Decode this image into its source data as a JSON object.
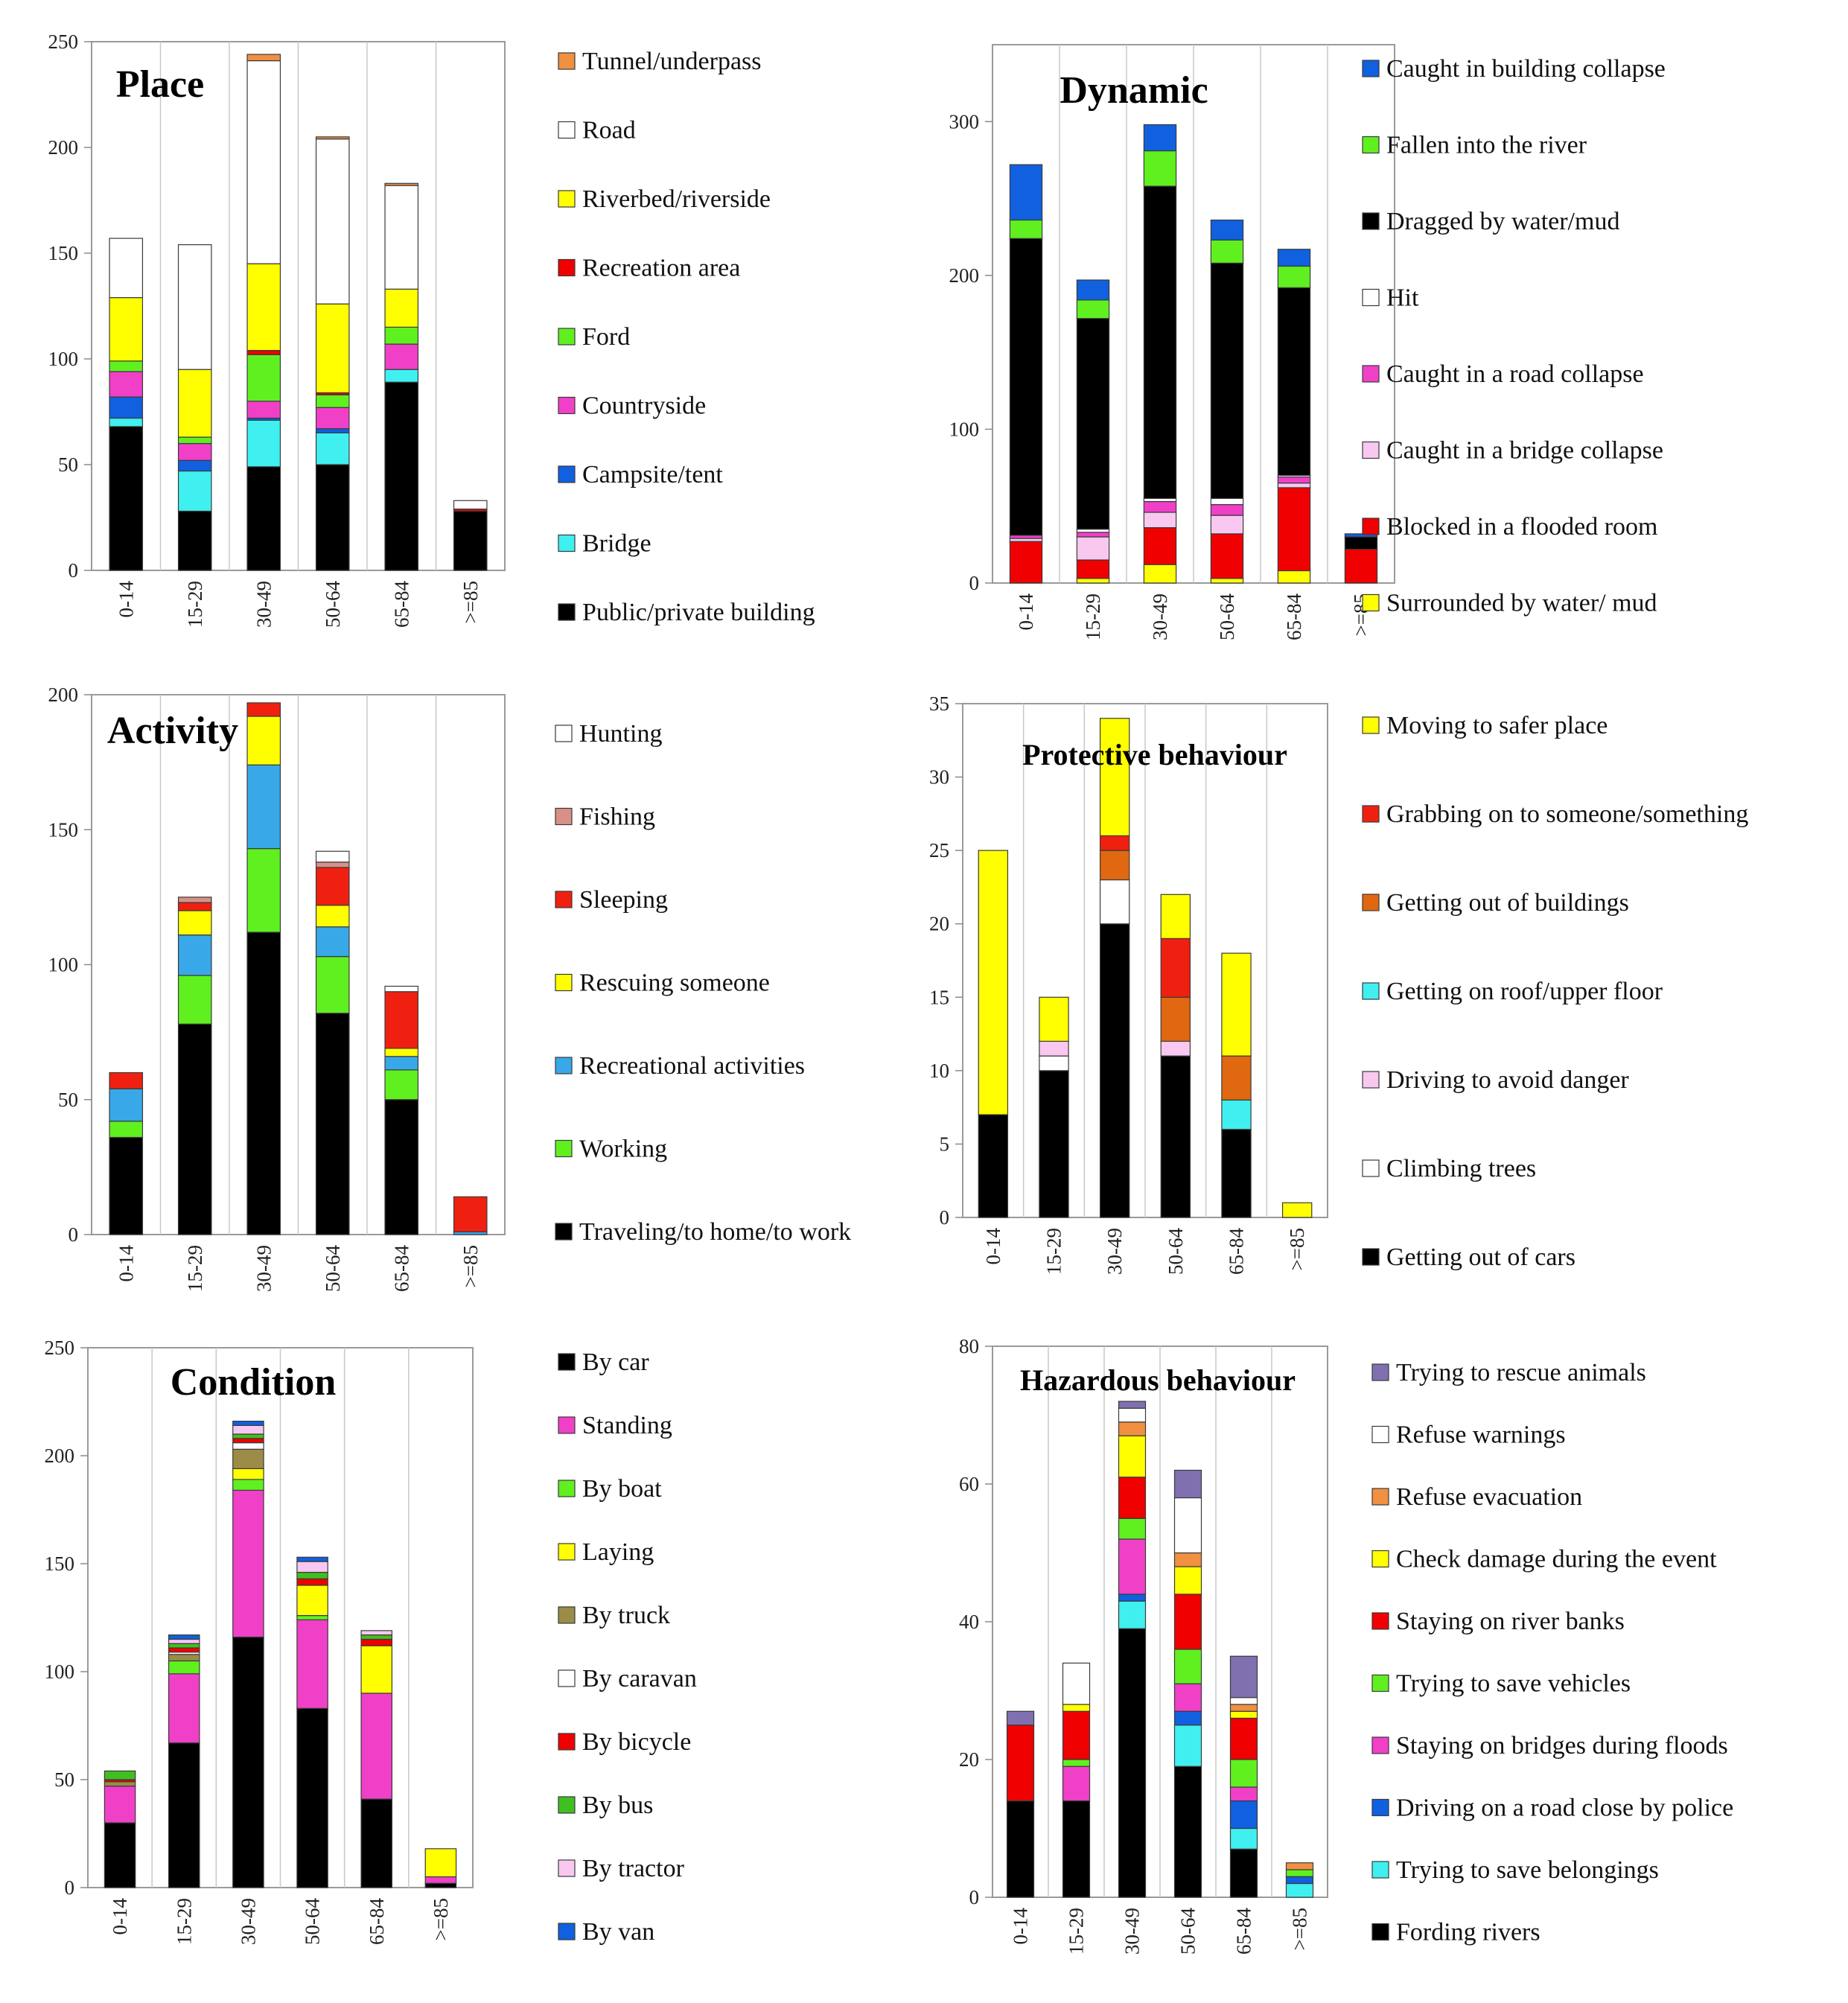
{
  "figure": {
    "age_groups": [
      "0-14",
      "15-29",
      "30-49",
      "50-64",
      "65-84",
      ">=85"
    ]
  },
  "chart_data": [
    {
      "type": "bar",
      "stacked": true,
      "title": "Place",
      "categories": [
        "0-14",
        "15-29",
        "30-49",
        "50-64",
        "65-84",
        ">=85"
      ],
      "ylim": [
        0,
        250
      ],
      "yticks": [
        0,
        50,
        100,
        150,
        200,
        250
      ],
      "series": [
        {
          "name": "Public/private building",
          "color": "#000000",
          "values": [
            68,
            28,
            49,
            50,
            89,
            28
          ]
        },
        {
          "name": "Bridge",
          "color": "#40f0f0",
          "values": [
            4,
            19,
            22,
            15,
            6,
            0
          ]
        },
        {
          "name": "Campsite/tent",
          "color": "#1060e0",
          "values": [
            10,
            5,
            1,
            2,
            0,
            0
          ]
        },
        {
          "name": "Countryside",
          "color": "#f040c8",
          "values": [
            12,
            8,
            8,
            10,
            12,
            0
          ]
        },
        {
          "name": "Ford",
          "color": "#60f020",
          "values": [
            5,
            3,
            22,
            6,
            8,
            0
          ]
        },
        {
          "name": "Recreation area",
          "color": "#f00000",
          "values": [
            0,
            0,
            2,
            1,
            0,
            1
          ]
        },
        {
          "name": "Riverbed/riverside",
          "color": "#ffff00",
          "values": [
            30,
            32,
            41,
            42,
            18,
            0
          ]
        },
        {
          "name": "Road",
          "color": "#ffffff",
          "values": [
            28,
            59,
            96,
            78,
            49,
            4
          ]
        },
        {
          "name": "Tunnel/underpass",
          "color": "#f09040",
          "values": [
            0,
            0,
            3,
            1,
            1,
            0
          ]
        }
      ]
    },
    {
      "type": "bar",
      "stacked": true,
      "title": "Dynamic",
      "categories": [
        "0-14",
        "15-29",
        "30-49",
        "50-64",
        "65-84",
        ">=85"
      ],
      "ylim": [
        0,
        350
      ],
      "yticks": [
        0,
        100,
        200,
        300
      ],
      "series": [
        {
          "name": "Surrounded by water/ mud",
          "color": "#ffff00",
          "values": [
            0,
            3,
            12,
            3,
            8,
            0
          ]
        },
        {
          "name": "Blocked in a flooded room",
          "color": "#f00000",
          "values": [
            27,
            12,
            24,
            29,
            54,
            22
          ]
        },
        {
          "name": "Caught in a bridge collapse",
          "color": "#f8c8f0",
          "values": [
            2,
            15,
            10,
            12,
            3,
            0
          ]
        },
        {
          "name": "Caught in a road collapse",
          "color": "#f040c8",
          "values": [
            2,
            3,
            7,
            7,
            4,
            0
          ]
        },
        {
          "name": "Hit",
          "color": "#ffffff",
          "values": [
            0,
            2,
            2,
            4,
            1,
            0
          ]
        },
        {
          "name": "Dragged by water/mud",
          "color": "#000000",
          "values": [
            193,
            137,
            203,
            153,
            122,
            8
          ]
        },
        {
          "name": "Fallen into the river",
          "color": "#60f020",
          "values": [
            12,
            12,
            23,
            15,
            14,
            0
          ]
        },
        {
          "name": "Caught in building collapse",
          "color": "#1060e0",
          "values": [
            36,
            13,
            17,
            13,
            11,
            2
          ]
        }
      ]
    },
    {
      "type": "bar",
      "stacked": true,
      "title": "Activity",
      "categories": [
        "0-14",
        "15-29",
        "30-49",
        "50-64",
        "65-84",
        ">=85"
      ],
      "ylim": [
        0,
        200
      ],
      "yticks": [
        0,
        50,
        100,
        150,
        200
      ],
      "series": [
        {
          "name": "Traveling/to home/to work",
          "color": "#000000",
          "values": [
            36,
            78,
            112,
            82,
            50,
            0
          ]
        },
        {
          "name": "Working",
          "color": "#60f020",
          "values": [
            6,
            18,
            31,
            21,
            11,
            0
          ]
        },
        {
          "name": "Recreational activities",
          "color": "#38a8e8",
          "values": [
            12,
            15,
            31,
            11,
            5,
            1
          ]
        },
        {
          "name": "Rescuing someone",
          "color": "#ffff00",
          "values": [
            0,
            9,
            18,
            8,
            3,
            0
          ]
        },
        {
          "name": "Sleeping",
          "color": "#f02010",
          "values": [
            6,
            3,
            5,
            14,
            21,
            13
          ]
        },
        {
          "name": "Fishing",
          "color": "#d89088",
          "values": [
            0,
            2,
            0,
            2,
            0,
            0
          ]
        },
        {
          "name": "Hunting",
          "color": "#ffffff",
          "values": [
            0,
            0,
            0,
            4,
            2,
            0
          ]
        }
      ]
    },
    {
      "type": "bar",
      "stacked": true,
      "title": "Protective behaviour",
      "categories": [
        "0-14",
        "15-29",
        "30-49",
        "50-64",
        "65-84",
        ">=85"
      ],
      "ylim": [
        0,
        35
      ],
      "yticks": [
        0,
        5,
        10,
        15,
        20,
        25,
        30,
        35
      ],
      "series": [
        {
          "name": "Getting out of cars",
          "color": "#000000",
          "values": [
            7,
            10,
            20,
            11,
            6,
            0
          ]
        },
        {
          "name": "Climbing trees",
          "color": "#ffffff",
          "values": [
            0,
            1,
            3,
            0,
            0,
            0
          ]
        },
        {
          "name": "Driving to avoid danger",
          "color": "#f8c8f0",
          "values": [
            0,
            1,
            0,
            1,
            0,
            0
          ]
        },
        {
          "name": "Getting on roof/upper floor",
          "color": "#40f0f0",
          "values": [
            0,
            0,
            0,
            0,
            2,
            0
          ]
        },
        {
          "name": "Getting out of buildings",
          "color": "#e06810",
          "values": [
            0,
            0,
            2,
            3,
            3,
            0
          ]
        },
        {
          "name": "Grabbing on to someone/something",
          "color": "#f02010",
          "values": [
            0,
            0,
            1,
            4,
            0,
            0
          ]
        },
        {
          "name": "Moving to safer place",
          "color": "#ffff00",
          "values": [
            18,
            3,
            8,
            3,
            7,
            1
          ]
        }
      ]
    },
    {
      "type": "bar",
      "stacked": true,
      "title": "Condition",
      "categories": [
        "0-14",
        "15-29",
        "30-49",
        "50-64",
        "65-84",
        ">=85"
      ],
      "ylim": [
        0,
        250
      ],
      "yticks": [
        0,
        50,
        100,
        150,
        200,
        250
      ],
      "series": [
        {
          "name": "By car",
          "color": "#000000",
          "values": [
            30,
            67,
            116,
            83,
            41,
            2
          ]
        },
        {
          "name": "Standing",
          "color": "#f040c8",
          "values": [
            17,
            32,
            68,
            41,
            49,
            3
          ]
        },
        {
          "name": "By boat",
          "color": "#60f020",
          "values": [
            0,
            6,
            5,
            2,
            0,
            0
          ]
        },
        {
          "name": "Laying",
          "color": "#ffff00",
          "values": [
            0,
            0,
            5,
            14,
            22,
            13
          ]
        },
        {
          "name": "By truck",
          "color": "#9c8c48",
          "values": [
            2,
            3,
            9,
            0,
            0,
            0
          ]
        },
        {
          "name": "By caravan",
          "color": "#ffffff",
          "values": [
            0,
            1,
            3,
            0,
            0,
            0
          ]
        },
        {
          "name": "By bicycle",
          "color": "#f00000",
          "values": [
            1,
            2,
            2,
            3,
            3,
            0
          ]
        },
        {
          "name": "By bus",
          "color": "#40c020",
          "values": [
            4,
            2,
            2,
            3,
            2,
            0
          ]
        },
        {
          "name": "By tractor",
          "color": "#f8c8f0",
          "values": [
            0,
            2,
            4,
            5,
            2,
            0
          ]
        },
        {
          "name": "By van",
          "color": "#1060e0",
          "values": [
            0,
            2,
            2,
            2,
            0,
            0
          ]
        }
      ]
    },
    {
      "type": "bar",
      "stacked": true,
      "title": "Hazardous behaviour",
      "categories": [
        "0-14",
        "15-29",
        "30-49",
        "50-64",
        "65-84",
        ">=85"
      ],
      "ylim": [
        0,
        80
      ],
      "yticks": [
        0,
        20,
        40,
        60,
        80
      ],
      "series": [
        {
          "name": "Fording rivers",
          "color": "#000000",
          "values": [
            14,
            14,
            39,
            19,
            7,
            0
          ]
        },
        {
          "name": "Trying to save belongings",
          "color": "#40f0f0",
          "values": [
            0,
            0,
            4,
            6,
            3,
            2
          ]
        },
        {
          "name": "Driving on a road close by police",
          "color": "#1060e0",
          "values": [
            0,
            0,
            1,
            2,
            4,
            1
          ]
        },
        {
          "name": "Staying on bridges during floods",
          "color": "#f040c8",
          "values": [
            0,
            5,
            8,
            4,
            2,
            0
          ]
        },
        {
          "name": "Trying to save vehicles",
          "color": "#60f020",
          "values": [
            0,
            1,
            3,
            5,
            4,
            1
          ]
        },
        {
          "name": "Staying on river banks",
          "color": "#f00000",
          "values": [
            11,
            7,
            6,
            8,
            6,
            0
          ]
        },
        {
          "name": "Check damage during the event",
          "color": "#ffff00",
          "values": [
            0,
            1,
            6,
            4,
            1,
            0
          ]
        },
        {
          "name": "Refuse evacuation",
          "color": "#f09040",
          "values": [
            0,
            0,
            2,
            2,
            1,
            1
          ]
        },
        {
          "name": "Refuse warnings",
          "color": "#ffffff",
          "values": [
            0,
            6,
            2,
            8,
            1,
            0
          ]
        },
        {
          "name": "Trying to rescue animals",
          "color": "#8070b0",
          "values": [
            2,
            0,
            1,
            4,
            6,
            0
          ]
        }
      ]
    }
  ]
}
